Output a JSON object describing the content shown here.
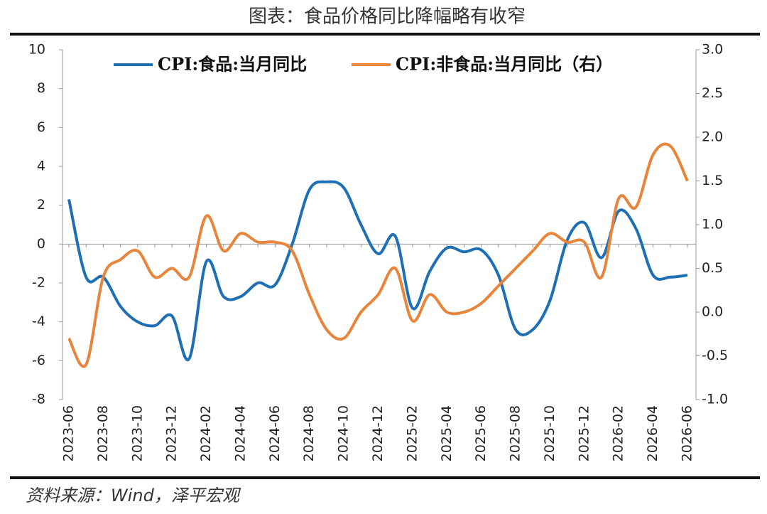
{
  "chart_data": {
    "type": "line",
    "title": "图表：食品价格同比降幅略有收窄",
    "source": "资料来源：Wind，泽平宏观",
    "categories": [
      "2023-06",
      null,
      "2023-08",
      null,
      "2023-10",
      null,
      "2023-12",
      null,
      "2024-02",
      null,
      "2024-04",
      null,
      "2024-06",
      null,
      "2024-08",
      null,
      "2024-10",
      null,
      "2024-12",
      null,
      "2025-02",
      null,
      "2025-04",
      null,
      "2025-06",
      null,
      "2025-08",
      null,
      "2025-10",
      null,
      "2025-12",
      null,
      "2026-02",
      null,
      "2026-04",
      null,
      "2026-06"
    ],
    "series": [
      {
        "name": "CPI:食品:当月同比",
        "color": "#1f6fb4",
        "values": [
          2.3,
          -1.7,
          -1.7,
          -3.2,
          -4.0,
          -4.2,
          -3.7,
          -5.9,
          -0.9,
          -2.7,
          -2.7,
          -2.0,
          -2.1,
          0.0,
          2.8,
          3.2,
          2.9,
          1.0,
          -0.5,
          0.4,
          -3.3,
          -1.4,
          -0.2,
          -0.4,
          -0.3,
          -1.6,
          -4.4,
          -4.4,
          -2.9,
          0.2,
          1.1,
          -0.7,
          1.7,
          0.8,
          -1.6,
          -1.7,
          -1.6
        ]
      },
      {
        "name": "CPI:非食品:当月同比（右）",
        "color": "#e8853a",
        "axis": "y2",
        "values": [
          -0.3,
          -0.6,
          0.4,
          0.6,
          0.7,
          0.4,
          0.5,
          0.4,
          1.1,
          0.7,
          0.9,
          0.8,
          0.8,
          0.7,
          0.2,
          -0.2,
          -0.3,
          0.0,
          0.2,
          0.5,
          -0.1,
          0.2,
          0.0,
          0.0,
          0.1,
          0.3,
          0.5,
          0.7,
          0.9,
          0.8,
          0.8,
          0.4,
          1.3,
          1.2,
          1.8,
          1.9,
          1.5
        ]
      }
    ],
    "ylim": [
      -8,
      10
    ],
    "yticks": [
      -8,
      -6,
      -4,
      -2,
      0,
      2,
      4,
      6,
      8,
      10
    ],
    "y2lim": [
      -1,
      3
    ],
    "y2ticks": [
      {
        "value": -1,
        "label": "-1.0"
      },
      -0.5,
      {
        "value": 0,
        "label": "0.0"
      },
      0.5,
      {
        "value": 1,
        "label": "1.0"
      },
      1.5,
      {
        "value": 2,
        "label": "2.0"
      },
      2.5,
      {
        "value": 3,
        "label": "3.0"
      }
    ]
  }
}
